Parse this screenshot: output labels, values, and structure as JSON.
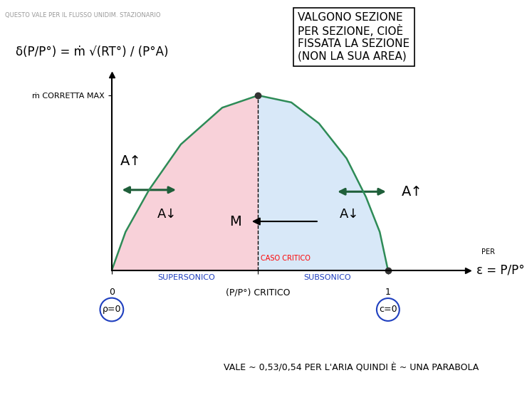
{
  "chart_data": {
    "type": "line",
    "ylabel": "δ(P/P°) = ṁ √(RT°) / (P°A)",
    "xlabel": "ε = P/P°",
    "xlabel_note": "PER",
    "x": [
      0,
      0.05,
      0.135,
      0.25,
      0.4,
      0.53,
      0.65,
      0.75,
      0.85,
      0.92,
      0.97,
      1.0
    ],
    "values": [
      0,
      0.22,
      0.46,
      0.72,
      0.93,
      1.0,
      0.96,
      0.84,
      0.64,
      0.42,
      0.22,
      0
    ],
    "color": "#2e8b57",
    "xlim": [
      0,
      1.29
    ],
    "ylim": [
      0,
      1.12
    ],
    "xticks": [
      0,
      {
        "value": 0.53,
        "label": "(P/P°) CRITICO"
      },
      1
    ],
    "yticks": [
      {
        "value": 1,
        "label": "ṁ CORRETTA MAX"
      }
    ],
    "grid": false,
    "annotations": {
      "area_up": "A↑",
      "area_down": "A↓",
      "mach": "M",
      "critical_case": "CASO CRITICO",
      "supersonic": "SUPERSONICO",
      "subsonic": "SUBSONICO",
      "left_end": "ρ=0",
      "right_end": "c=0",
      "note_top": "QUESTO VALE PER IL FLUSSO UNIDIM. STAZIONARIO",
      "note_bottom": "VALE ~ 0,53/0,54 PER L'ARIA QUINDI È ~ UNA PARABOLA",
      "box": [
        "VALGONO SEZIONE",
        "PER SEZIONE, CIOÈ",
        "FISSATA LA SEZIONE",
        "(NON LA SUA AREA)"
      ]
    }
  }
}
